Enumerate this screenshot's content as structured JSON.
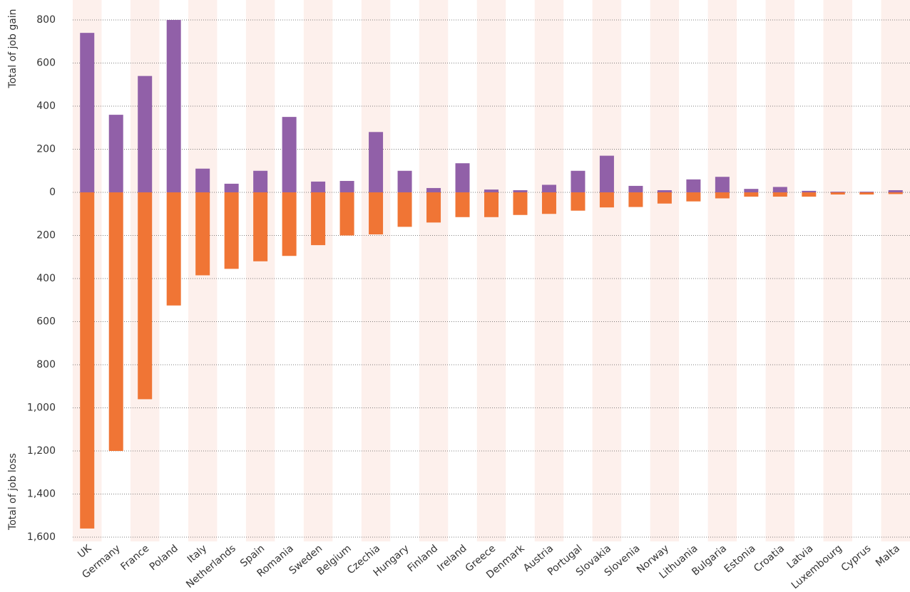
{
  "chart_data": {
    "type": "diverging-bar",
    "y_label_gain": "Total of job gain",
    "y_label_loss": "Total of job loss",
    "categories": [
      "UK",
      "Germany",
      "France",
      "Poland",
      "Italy",
      "Netherlands",
      "Spain",
      "Romania",
      "Sweden",
      "Belgium",
      "Czechia",
      "Hungary",
      "Finland",
      "Ireland",
      "Greece",
      "Denmark",
      "Austria",
      "Portugal",
      "Slovakia",
      "Slovenia",
      "Norway",
      "Lithuania",
      "Bulgaria",
      "Estonia",
      "Croatia",
      "Latvia",
      "Luxembourg",
      "Cyprus",
      "Malta"
    ],
    "series": [
      {
        "color": "#9160a8",
        "values": [
          740,
          360,
          540,
          800,
          110,
          40,
          100,
          350,
          50,
          53,
          280,
          100,
          20,
          135,
          13,
          10,
          35,
          100,
          170,
          30,
          10,
          60,
          72,
          16,
          25,
          7,
          3,
          3,
          10
        ]
      },
      {
        "color": "#f07535",
        "values": [
          -1560,
          -1200,
          -960,
          -525,
          -385,
          -355,
          -320,
          -295,
          -245,
          -200,
          -195,
          -160,
          -140,
          -115,
          -115,
          -105,
          -100,
          -85,
          -70,
          -68,
          -52,
          -42,
          -28,
          -20,
          -20,
          -20,
          -10,
          -10,
          -8
        ]
      }
    ],
    "ylim": [
      -1600,
      800
    ],
    "yticks": [
      800,
      600,
      400,
      200,
      0,
      {
        "value": -200,
        "label": "200"
      },
      {
        "value": -400,
        "label": "400"
      },
      {
        "value": -600,
        "label": "600"
      },
      {
        "value": -800,
        "label": "800"
      },
      {
        "value": -1000,
        "label": "1,000"
      },
      {
        "value": -1200,
        "label": "1,200"
      },
      {
        "value": -1400,
        "label": "1,400"
      },
      {
        "value": -1600,
        "label": "1,600"
      }
    ],
    "grid": true,
    "band_color": "#fdf0ec"
  }
}
